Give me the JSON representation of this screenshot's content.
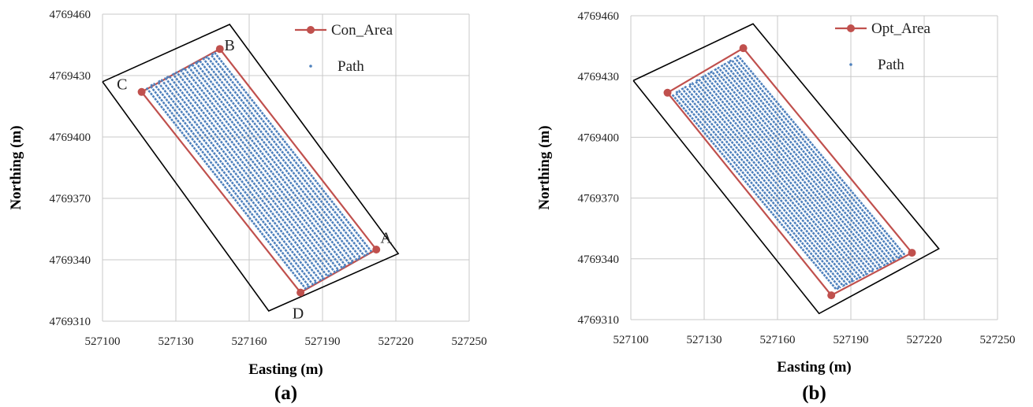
{
  "chart_data": [
    {
      "panel_label": "(a)",
      "type": "line",
      "xlabel": "Easting (m)",
      "ylabel": "Northing (m)",
      "xlim": [
        527100,
        527250
      ],
      "ylim": [
        4769310,
        4769460
      ],
      "xticks": [
        "527100",
        "527130",
        "527160",
        "527190",
        "527220",
        "527250"
      ],
      "yticks": [
        "4769310",
        "4769340",
        "4769370",
        "4769400",
        "4769430",
        "4769460"
      ],
      "grid": true,
      "legend_position": "top-right",
      "colors": {
        "area": "#c0504d",
        "path": "#4f81bd",
        "bounding_box": "#000000"
      },
      "series": [
        {
          "name": "Con_Area",
          "x": [
            527212,
            527148,
            527116,
            527181,
            527212
          ],
          "y": [
            4769345,
            4769443,
            4769422,
            4769324,
            4769345
          ]
        },
        {
          "name": "Path",
          "passes": 19,
          "corners": {
            "top_start": [
              527118,
              4769424
            ],
            "top_end": [
              527146,
              4769441
            ],
            "bottom_start": [
              527183,
              4769326
            ],
            "bottom_end": [
              527210,
              4769344
            ]
          }
        }
      ],
      "bounding_box": {
        "x": [
          527100,
          527152,
          527221,
          527168,
          527100
        ],
        "y": [
          4769427,
          4769455,
          4769343,
          4769315,
          4769427
        ]
      },
      "point_labels": [
        {
          "text": "A",
          "x": 527216,
          "y": 4769351
        },
        {
          "text": "B",
          "x": 527152,
          "y": 4769445
        },
        {
          "text": "C",
          "x": 527108,
          "y": 4769426
        },
        {
          "text": "D",
          "x": 527180,
          "y": 4769314
        }
      ]
    },
    {
      "panel_label": "(b)",
      "type": "line",
      "xlabel": "Easting (m)",
      "ylabel": "Northing (m)",
      "xlim": [
        527100,
        527250
      ],
      "ylim": [
        4769310,
        4769460
      ],
      "xticks": [
        "527100",
        "527130",
        "527160",
        "527190",
        "527220",
        "527250"
      ],
      "yticks": [
        "4769310",
        "4769340",
        "4769370",
        "4769400",
        "4769430",
        "4769460"
      ],
      "grid": true,
      "legend_position": "top-right",
      "colors": {
        "area": "#c0504d",
        "path": "#4f81bd",
        "bounding_box": "#000000"
      },
      "series": [
        {
          "name": "Opt_Area",
          "x": [
            527215,
            527146,
            527115,
            527182,
            527215
          ],
          "y": [
            4769343,
            4769444,
            4769422,
            4769322,
            4769343
          ]
        },
        {
          "name": "Path",
          "passes": 21,
          "corners": {
            "top_start": [
              527117,
              4769421
            ],
            "top_end": [
              527144,
              4769440
            ],
            "bottom_start": [
              527184,
              4769325
            ],
            "bottom_end": [
              527212,
              4769342
            ]
          }
        }
      ],
      "bounding_box": {
        "x": [
          527101,
          527150,
          527226,
          527177,
          527101
        ],
        "y": [
          4769428,
          4769456,
          4769345,
          4769313,
          4769428
        ]
      },
      "point_labels": []
    }
  ]
}
